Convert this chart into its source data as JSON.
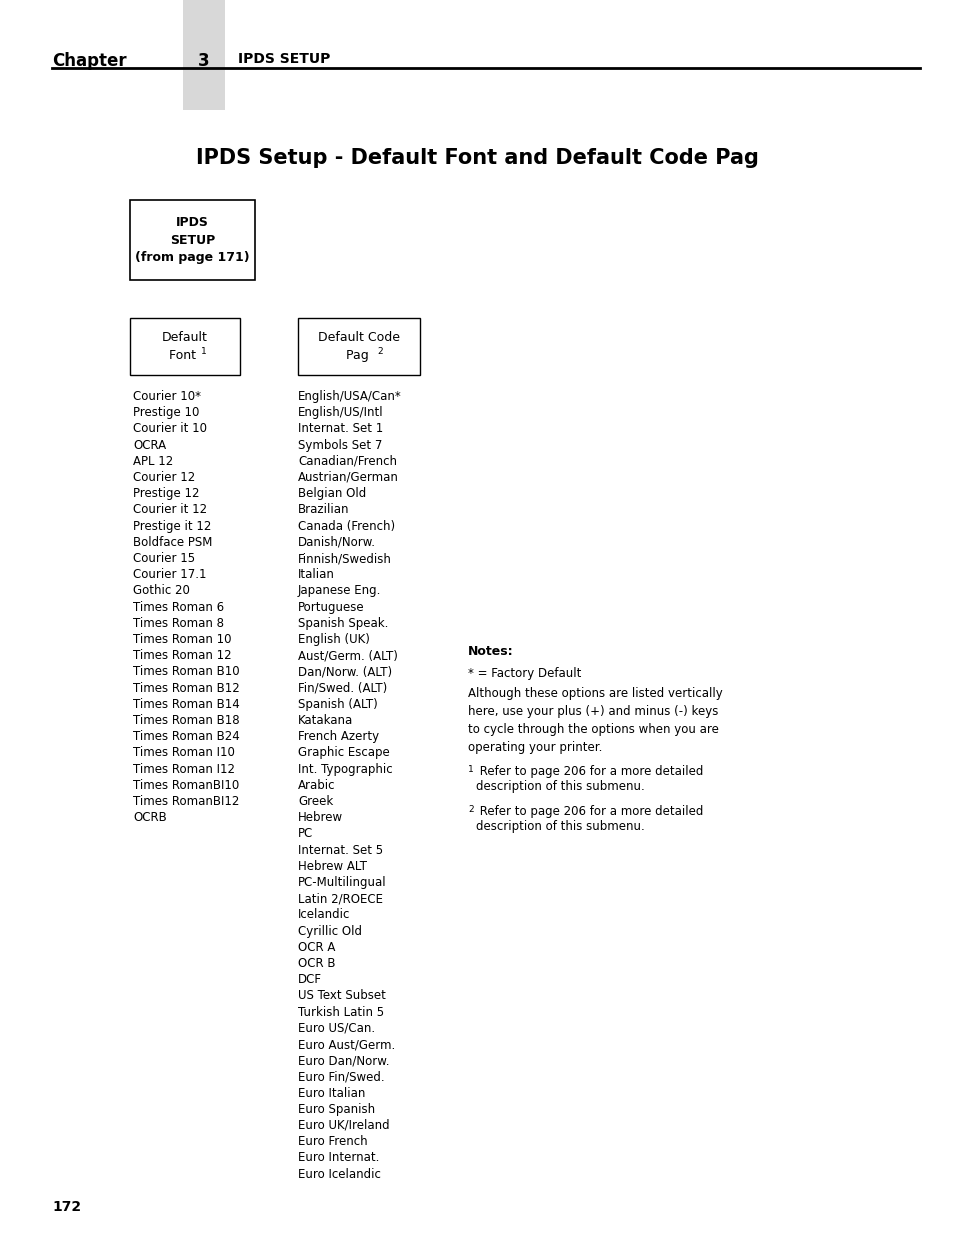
{
  "title": "IPDS Setup - Default Font and Default Code Pag",
  "chapter_text": "Chapter",
  "chapter_num": "3",
  "chapter_subtitle": "IPDS SETUP",
  "page_num": "172",
  "header_box": "IPDS\nSETUP\n(from page 171)",
  "box1_label": "Default\nFont ¹",
  "box2_label": "Default Code\nPag ²",
  "col1_items": [
    "Courier 10*",
    "Prestige 10",
    "Courier it 10",
    "OCRA",
    "APL 12",
    "Courier 12",
    "Prestige 12",
    "Courier it 12",
    "Prestige it 12",
    "Boldface PSM",
    "Courier 15",
    "Courier 17.1",
    "Gothic 20",
    "Times Roman 6",
    "Times Roman 8",
    "Times Roman 10",
    "Times Roman 12",
    "Times Roman B10",
    "Times Roman B12",
    "Times Roman B14",
    "Times Roman B18",
    "Times Roman B24",
    "Times Roman I10",
    "Times Roman I12",
    "Times RomanBI10",
    "Times RomanBI12",
    "OCRB"
  ],
  "col2_items": [
    "English/USA/Can*",
    "English/US/Intl",
    "Internat. Set 1",
    "Symbols Set 7",
    "Canadian/French",
    "Austrian/German",
    "Belgian Old",
    "Brazilian",
    "Canada (French)",
    "Danish/Norw.",
    "Finnish/Swedish",
    "Italian",
    "Japanese Eng.",
    "Portuguese",
    "Spanish Speak.",
    "English (UK)",
    "Aust/Germ. (ALT)",
    "Dan/Norw. (ALT)",
    "Fin/Swed. (ALT)",
    "Spanish (ALT)",
    "Katakana",
    "French Azerty",
    "Graphic Escape",
    "Int. Typographic",
    "Arabic",
    "Greek",
    "Hebrew",
    "PC",
    "Internat. Set 5",
    "Hebrew ALT",
    "PC-Multilingual",
    "Latin 2/ROECE",
    "Icelandic",
    "Cyrillic Old",
    "OCR A",
    "OCR B",
    "DCF",
    "US Text Subset",
    "Turkish Latin 5",
    "Euro US/Can.",
    "Euro Aust/Germ.",
    "Euro Dan/Norw.",
    "Euro Fin/Swed.",
    "Euro Italian",
    "Euro Spanish",
    "Euro UK/Ireland",
    "Euro French",
    "Euro Internat.",
    "Euro Icelandic"
  ],
  "notes_title": "Notes:",
  "note_factory": "* = Factory Default",
  "note_body": "Although these options are listed vertically\nhere, use your plus (+) and minus (-) keys\nto cycle through the options when you are\noperating your printer.",
  "footnote1": " Refer to page 206 for a more detailed\n   description of this submenu.",
  "footnote2": " Refer to page 206 for a more detailed\n   description of this submenu.",
  "footnote1_super": "1",
  "footnote2_super": "2",
  "bg_color": "#ffffff",
  "text_color": "#000000",
  "gray_color": "#d8d8d8"
}
